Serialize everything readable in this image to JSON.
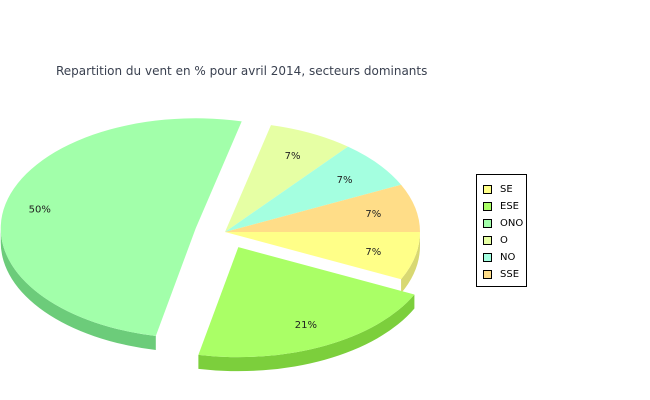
{
  "chart_data": {
    "type": "pie",
    "title": "Repartition du vent en % pour avril 2014, secteurs dominants",
    "slices": [
      {
        "name": "SE",
        "value": 7,
        "label": "7%",
        "color": "#ffff88",
        "side": "#d8d872"
      },
      {
        "name": "ESE",
        "value": 21,
        "label": "21%",
        "color": "#aaff66",
        "side": "#7ccf3c",
        "exploded": true
      },
      {
        "name": "ONO",
        "value": 50,
        "label": "50%",
        "color": "#a2ffaa",
        "side": "#6ccc7a",
        "exploded": true
      },
      {
        "name": "O",
        "value": 7,
        "label": "7%",
        "color": "#e6ffa4",
        "side": "#bccf80"
      },
      {
        "name": "NO",
        "value": 7,
        "label": "7%",
        "color": "#a4ffe0",
        "side": "#78cfb0"
      },
      {
        "name": "SSE",
        "value": 7,
        "label": "7%",
        "color": "#ffdd88",
        "side": "#d6b466"
      }
    ],
    "legend_placement": "right"
  }
}
